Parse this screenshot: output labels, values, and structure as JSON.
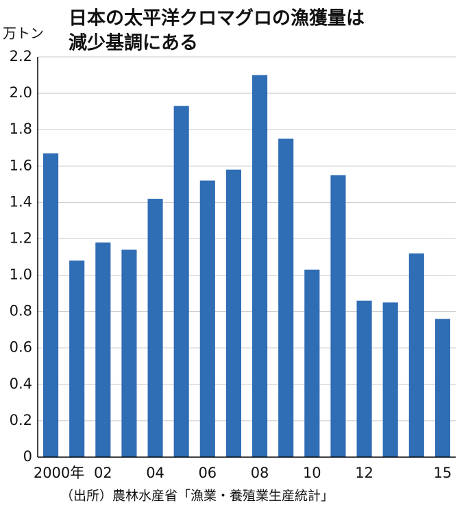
{
  "chart_data": {
    "type": "bar",
    "title": [
      "日本の太平洋クロマグロの漁獲量は",
      "減少基調にある"
    ],
    "y_label": "万トン",
    "source": "（出所）農林水産省「漁業・養殖業生産統計」",
    "categories": [
      "2000年",
      null,
      "02",
      null,
      "04",
      null,
      "06",
      null,
      "08",
      null,
      "10",
      null,
      "12",
      null,
      null,
      "15"
    ],
    "values": [
      1.67,
      1.08,
      1.18,
      1.14,
      1.42,
      1.93,
      1.52,
      1.58,
      2.1,
      1.75,
      1.03,
      1.55,
      0.86,
      0.85,
      1.12,
      0.76
    ],
    "color": "#2f6db5",
    "ylim": [
      0,
      2.2
    ],
    "yticks": [
      0,
      0.2,
      0.4,
      0.6,
      0.8,
      {
        "value": 1.0,
        "label": "1.0"
      },
      1.2,
      1.4,
      1.6,
      1.8,
      {
        "value": 2.0,
        "label": "2.0"
      },
      2.2
    ],
    "grid": true
  }
}
